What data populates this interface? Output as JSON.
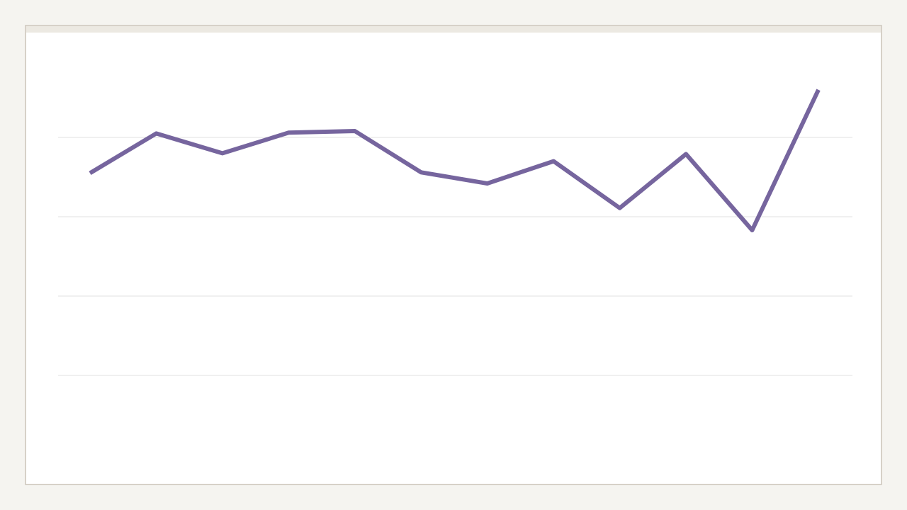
{
  "chart_data": {
    "type": "line",
    "title": "",
    "xlabel": "",
    "ylabel": "",
    "grid": true,
    "ylim": [
      0,
      5
    ],
    "gridlines": [
      1,
      2,
      3,
      4
    ],
    "series": [
      {
        "color": "#76659e",
        "values": [
          3.55,
          4.05,
          3.8,
          4.06,
          4.08,
          3.56,
          3.42,
          3.7,
          3.11,
          3.79,
          2.83,
          4.6
        ]
      }
    ]
  },
  "colors": {
    "line": "#76659e",
    "grid": "#e2e2e2",
    "background": "#f5f4f0",
    "card": "#ffffff",
    "card_border": "#d6d1c8"
  }
}
